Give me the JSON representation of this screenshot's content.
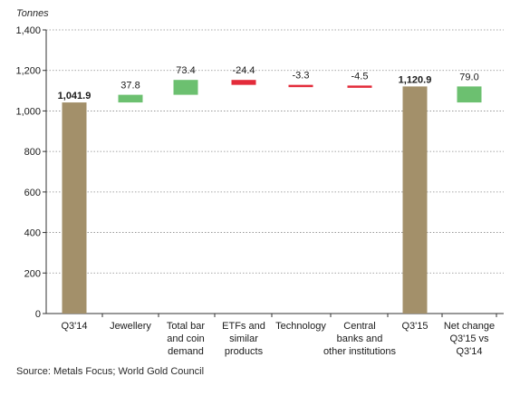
{
  "chart_data": {
    "type": "bar",
    "subtype": "waterfall",
    "unit_label": "Tonnes",
    "ylim": [
      0,
      1400
    ],
    "y_ticks": [
      "0",
      "200",
      "400",
      "600",
      "800",
      "1,000",
      "1,200",
      "1,400"
    ],
    "y_tick_values": [
      0,
      200,
      400,
      600,
      800,
      1000,
      1200,
      1400
    ],
    "grid": "dotted horizontal",
    "categories": [
      {
        "label": [
          "Q3'14"
        ],
        "value": 1041.9,
        "value_label": "1,041.9",
        "kind": "total",
        "base": 0
      },
      {
        "label": [
          "Jewellery"
        ],
        "value": 37.8,
        "value_label": "37.8",
        "kind": "increase",
        "base": 1041.9
      },
      {
        "label": [
          "Total bar",
          "and coin",
          "demand"
        ],
        "value": 73.4,
        "value_label": "73.4",
        "kind": "increase",
        "base": 1079.7
      },
      {
        "label": [
          "ETFs and",
          "similar",
          "products"
        ],
        "value": -24.4,
        "value_label": "-24.4",
        "kind": "decrease",
        "base": 1153.1
      },
      {
        "label": [
          "Technology"
        ],
        "value": -3.3,
        "value_label": "-3.3",
        "kind": "decrease",
        "base": 1128.7
      },
      {
        "label": [
          "Central",
          "banks and",
          "other institutions"
        ],
        "value": -4.5,
        "value_label": "-4.5",
        "kind": "decrease",
        "base": 1125.4
      },
      {
        "label": [
          "Q3'15"
        ],
        "value": 1120.9,
        "value_label": "1,120.9",
        "kind": "total",
        "base": 0
      },
      {
        "label": [
          "Net change",
          "Q3'15 vs",
          "Q3'14"
        ],
        "value": 79.0,
        "value_label": "79.0",
        "kind": "increase",
        "base": 1041.9
      }
    ],
    "colors": {
      "total": "#a3906a",
      "increase": "#6cc070",
      "decrease": "#e32b3a",
      "axis": "#333333",
      "grid": "#8a8a8a",
      "text": "#1a1a1a"
    },
    "source": "Source: Metals Focus; World Gold Council"
  }
}
